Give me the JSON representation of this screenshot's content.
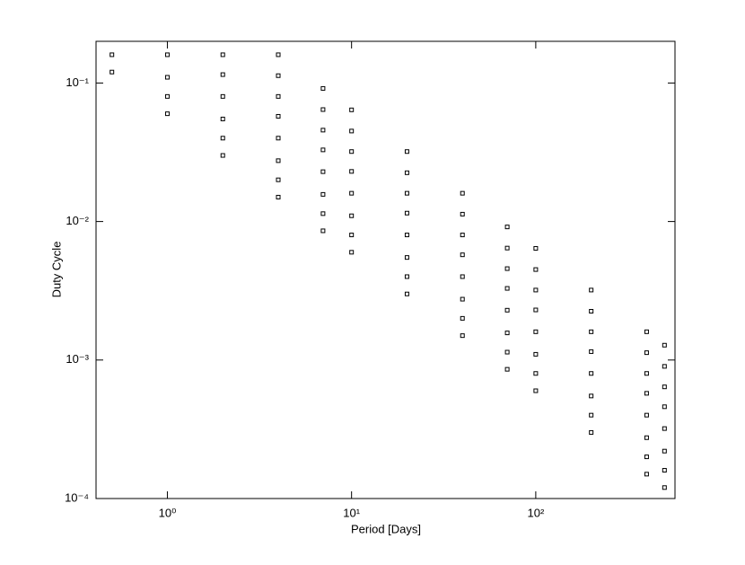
{
  "chart_data": {
    "type": "scatter",
    "x_label": "Period [Days]",
    "y_label": "Duty Cycle",
    "x": [
      0.5,
      1,
      2,
      4,
      7,
      10,
      20,
      40,
      70,
      100,
      200,
      400,
      500,
      0.5,
      1,
      2,
      4,
      7,
      10,
      20,
      40,
      70,
      100,
      200,
      400,
      500,
      1,
      2,
      4,
      7,
      10,
      20,
      40,
      70,
      100,
      200,
      400,
      500,
      1,
      2,
      4,
      7,
      10,
      20,
      40,
      70,
      100,
      200,
      400,
      500,
      2,
      4,
      7,
      10,
      20,
      40,
      70,
      100,
      200,
      400,
      500,
      2,
      4,
      7,
      10,
      20,
      40,
      70,
      100,
      200,
      400,
      500,
      4,
      7,
      10,
      20,
      40,
      70,
      100,
      200,
      400,
      500,
      4,
      7,
      10,
      20,
      40,
      70,
      100,
      200,
      400,
      500
    ],
    "y": [
      0.12,
      0.06,
      0.03,
      0.015,
      0.00857,
      0.006,
      0.003,
      0.0015,
      0.000857,
      0.0006,
      0.0003,
      0.00015,
      0.00012,
      0.16,
      0.08,
      0.04,
      0.02,
      0.0114,
      0.008,
      0.004,
      0.002,
      0.00114,
      0.0008,
      0.0004,
      0.0002,
      0.00016,
      0.11,
      0.055,
      0.0275,
      0.0157,
      0.011,
      0.0055,
      0.00275,
      0.00157,
      0.0011,
      0.00055,
      0.000275,
      0.00022,
      0.16,
      0.08,
      0.04,
      0.0229,
      0.016,
      0.008,
      0.004,
      0.00229,
      0.0016,
      0.0008,
      0.0004,
      0.00032,
      0.115,
      0.0575,
      0.0329,
      0.023,
      0.0115,
      0.00575,
      0.00329,
      0.0023,
      0.00115,
      0.000575,
      0.00046,
      0.16,
      0.08,
      0.0457,
      0.032,
      0.016,
      0.008,
      0.00457,
      0.0032,
      0.0016,
      0.0008,
      0.00064,
      0.113,
      0.0643,
      0.045,
      0.0225,
      0.0113,
      0.00643,
      0.0045,
      0.00225,
      0.00113,
      0.0009,
      0.16,
      0.0914,
      0.064,
      0.032,
      0.016,
      0.00914,
      0.0064,
      0.0032,
      0.0016,
      0.00128
    ],
    "color": "#000000",
    "x_log": true,
    "y_log": true,
    "xlim": [
      0.41,
      570
    ],
    "ylim": [
      0.0001,
      0.2
    ],
    "xticks": [
      {
        "value": 1,
        "label": "10⁰"
      },
      {
        "value": 10,
        "label": "10¹"
      },
      {
        "value": 100,
        "label": "10²"
      }
    ],
    "yticks": [
      {
        "value": 0.0001,
        "label": "10⁻⁴"
      },
      {
        "value": 0.001,
        "label": "10⁻³"
      },
      {
        "value": 0.01,
        "label": "10⁻²"
      },
      {
        "value": 0.1,
        "label": "10⁻¹"
      }
    ],
    "grid": false
  }
}
